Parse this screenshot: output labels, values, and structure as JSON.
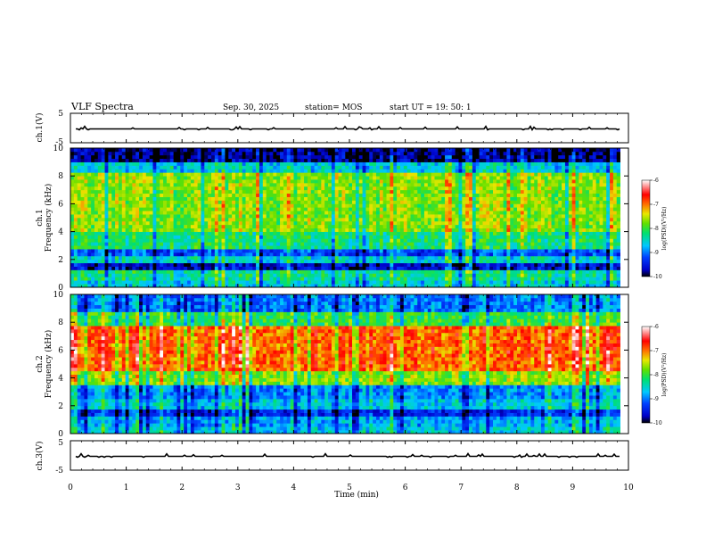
{
  "header": {
    "title": "VLF Spectra",
    "date": "Sep. 30, 2025",
    "station": "station= MOS",
    "start": "start  UT =   19: 50: 1"
  },
  "chart_data": [
    {
      "type": "line",
      "title": "ch.1(V)",
      "ylabel": "ch.1(V)",
      "ylim": [
        -5,
        5
      ],
      "yticks": [
        "5",
        "-5"
      ],
      "xlim": [
        0,
        10
      ],
      "series": [
        {
          "name": "ch.1 waveform",
          "level": 0
        }
      ]
    },
    {
      "type": "heatmap",
      "ylabel_line1": "ch.1",
      "ylabel_line2": "Frequency (kHz)",
      "ylim": [
        0,
        10
      ],
      "yticks": [
        "0",
        "2",
        "4",
        "6",
        "8",
        "10"
      ],
      "xlim": [
        0,
        10
      ],
      "t_end_min": 9.85,
      "colorbar": {
        "label": "log(PSD)(V²/Hz)",
        "ticks": [
          "-6",
          "-7",
          "-8",
          "-9",
          "-10"
        ],
        "range": [
          -10,
          -6
        ]
      },
      "bands_kHz_log_psd": [
        {
          "f": [
            0,
            0.5
          ],
          "v": -8.6
        },
        {
          "f": [
            0.5,
            1.2
          ],
          "v": -8.3
        },
        {
          "f": [
            1.2,
            1.8
          ],
          "v": -9.6
        },
        {
          "f": [
            1.8,
            2.2
          ],
          "v": -8.5
        },
        {
          "f": [
            2.2,
            2.7
          ],
          "v": -9.2
        },
        {
          "f": [
            2.7,
            4
          ],
          "v": -8.2
        },
        {
          "f": [
            4,
            8.2
          ],
          "v": -7.7
        },
        {
          "f": [
            8.2,
            9
          ],
          "v": -8.6
        },
        {
          "f": [
            9,
            10
          ],
          "v": -9.8
        }
      ]
    },
    {
      "type": "heatmap",
      "ylabel_line1": "ch.2",
      "ylabel_line2": "Frequency (kHz)",
      "ylim": [
        0,
        10
      ],
      "yticks": [
        "0",
        "2",
        "4",
        "6",
        "8",
        "10"
      ],
      "xlim": [
        0,
        10
      ],
      "t_end_min": 9.85,
      "colorbar": {
        "label": "log(PSD)(V²/Hz)",
        "ticks": [
          "-6",
          "-7",
          "-8",
          "-9",
          "-10"
        ],
        "range": [
          -10,
          -6
        ]
      },
      "bands_kHz_log_psd": [
        {
          "f": [
            0,
            0.6
          ],
          "v": -8.6
        },
        {
          "f": [
            0.6,
            1.2
          ],
          "v": -8.8
        },
        {
          "f": [
            1.2,
            1.8
          ],
          "v": -9.4
        },
        {
          "f": [
            1.8,
            2.6
          ],
          "v": -8.6
        },
        {
          "f": [
            2.6,
            3.4
          ],
          "v": -8.9
        },
        {
          "f": [
            3.4,
            4.4
          ],
          "v": -7.7
        },
        {
          "f": [
            4.4,
            7.8
          ],
          "v": -6.9
        },
        {
          "f": [
            7.8,
            8.8
          ],
          "v": -8.0
        },
        {
          "f": [
            8.8,
            10
          ],
          "v": -9.0
        }
      ]
    },
    {
      "type": "line",
      "title": "ch.3(V)",
      "ylabel": "ch.3(V)",
      "ylim": [
        -5,
        5
      ],
      "yticks": [
        "5",
        "-5"
      ],
      "xlim": [
        0,
        10
      ],
      "xlabel": "Time  (min)",
      "xticks": [
        "0",
        "1",
        "2",
        "3",
        "4",
        "5",
        "6",
        "7",
        "8",
        "9",
        "10"
      ],
      "series": [
        {
          "name": "ch.3 waveform",
          "level": 0
        }
      ]
    }
  ]
}
